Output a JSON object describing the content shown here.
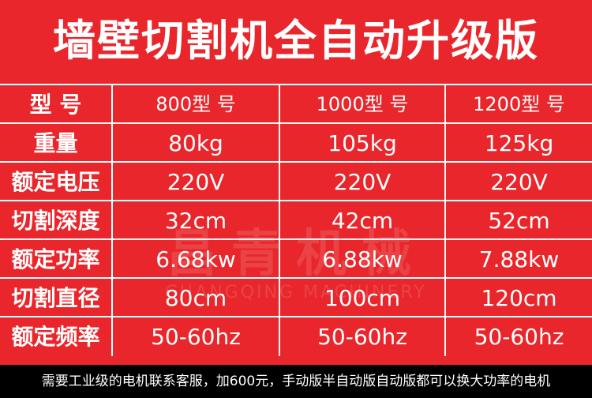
{
  "header": {
    "title": "墙壁切割机全自动升级版"
  },
  "watermark": {
    "name_cn": "昌青机械",
    "name_en": "CHANGQING MACHINERY"
  },
  "table": {
    "columns": [
      "型 号",
      "800型 号",
      "1000型 号",
      "1200型 号"
    ],
    "rows": [
      [
        "重量",
        "80kg",
        "105kg",
        "125kg"
      ],
      [
        "额定电压",
        "220V",
        "220V",
        "220V"
      ],
      [
        "切割深度",
        "32cm",
        "42cm",
        "52cm"
      ],
      [
        "额定功率",
        "6.68kw",
        "6.88kw",
        "7.88kw"
      ],
      [
        "切割直径",
        "80cm",
        "100cm",
        "120cm"
      ],
      [
        "额定频率",
        "50-60hz",
        "50-60hz",
        "50-60hz"
      ]
    ]
  },
  "footer": {
    "note": "需要工业级的电机联系客服，加600元，手动版半自动版自动版都可以换大功率的电机"
  }
}
